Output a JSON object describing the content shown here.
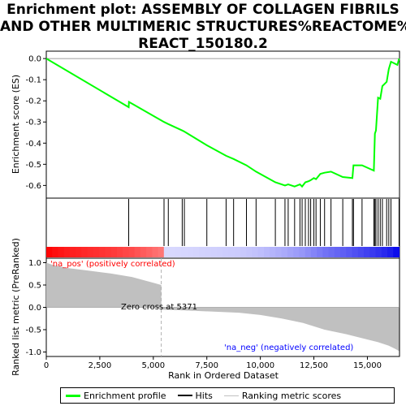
{
  "title_lines": [
    "Enrichment plot: ASSEMBLY OF COLLAGEN FIBRILS",
    "AND OTHER MULTIMERIC STRUCTURES%REACTOME%",
    "REACT_150180.2"
  ],
  "legend": {
    "items": [
      {
        "label": "Enrichment profile",
        "color": "#00ff00"
      },
      {
        "label": "Hits",
        "color": "#000000"
      },
      {
        "label": "Ranking metric scores",
        "color": "#c0c0c0"
      }
    ]
  },
  "colors": {
    "enrichment": "#00ff00",
    "ranking": "#c0c0c0",
    "hits": "#000000",
    "zero_cross": "#b0b0b0",
    "pos_label": "#ff0000",
    "neg_label": "#0000ff"
  },
  "chart_data": [
    {
      "type": "line",
      "ylabel": "Enrichment score (ES)",
      "xlim": [
        0,
        16500
      ],
      "ylim": [
        -0.66,
        0.035
      ],
      "yticks": [
        0.0,
        -0.1,
        -0.2,
        -0.3,
        -0.4,
        -0.5,
        -0.6
      ],
      "ytick_labels": [
        "0.0",
        "-0.1",
        "-0.2",
        "-0.3",
        "-0.4",
        "-0.5",
        "-0.6"
      ],
      "series": [
        {
          "x": [
            0,
            3850,
            3860,
            5500,
            5700,
            6350,
            6450,
            7500,
            8400,
            8750,
            9350,
            9800,
            10700,
            11150,
            11300,
            11600,
            11850,
            11950,
            12100,
            12250,
            12350,
            12500,
            12600,
            12800,
            13000,
            13300,
            13850,
            14300,
            14350,
            14750,
            15300,
            15350,
            15400,
            15500,
            15600,
            15700,
            15900,
            16000,
            16100,
            16400,
            16480
          ],
          "y": [
            0.0,
            -0.23,
            -0.205,
            -0.3,
            -0.31,
            -0.34,
            -0.345,
            -0.41,
            -0.46,
            -0.475,
            -0.505,
            -0.535,
            -0.585,
            -0.6,
            -0.595,
            -0.605,
            -0.595,
            -0.605,
            -0.585,
            -0.58,
            -0.575,
            -0.565,
            -0.57,
            -0.545,
            -0.54,
            -0.535,
            -0.56,
            -0.565,
            -0.505,
            -0.505,
            -0.53,
            -0.355,
            -0.34,
            -0.185,
            -0.19,
            -0.13,
            -0.11,
            -0.05,
            -0.015,
            -0.03,
            0.0
          ]
        }
      ]
    },
    {
      "type": "hits",
      "hit_positions": [
        3850,
        5500,
        5700,
        6350,
        6450,
        7500,
        8400,
        8750,
        9350,
        9800,
        10700,
        11150,
        11300,
        11600,
        11850,
        11950,
        12100,
        12250,
        12350,
        12500,
        12600,
        12800,
        13000,
        13300,
        13850,
        14300,
        14350,
        14750,
        15300,
        15350,
        15400,
        15500,
        15600,
        15700,
        15900,
        16000,
        16100,
        16480
      ]
    },
    {
      "type": "area",
      "xlabel": "Rank in Ordered Dataset",
      "ylabel": "Ranked list metric (PreRanked)",
      "xlim": [
        0,
        16500
      ],
      "ylim": [
        -1.1,
        1.1
      ],
      "yticks": [
        1.0,
        0.5,
        0.0,
        -0.5,
        -1.0
      ],
      "ytick_labels": [
        "1.0",
        "0.5",
        "0.0",
        "-0.5",
        "-1.0"
      ],
      "xticks": [
        0,
        2500,
        5000,
        7500,
        10000,
        12500,
        15000
      ],
      "xtick_labels": [
        "0",
        "2,500",
        "5,000",
        "7,500",
        "10,000",
        "12,500",
        "15,000"
      ],
      "x": [
        0,
        300,
        1000,
        2000,
        3000,
        4000,
        5000,
        5371,
        5380,
        7000,
        9000,
        10000,
        11000,
        12000,
        13000,
        14000,
        15000,
        15500,
        16000,
        16300,
        16480
      ],
      "values": [
        1.0,
        0.95,
        0.88,
        0.82,
        0.76,
        0.68,
        0.55,
        0.5,
        -0.05,
        -0.08,
        -0.12,
        -0.17,
        -0.25,
        -0.35,
        -0.5,
        -0.6,
        -0.72,
        -0.78,
        -0.86,
        -0.93,
        -0.98
      ],
      "zero_cross_label": "Zero cross at 5371",
      "zero_cross": 5371,
      "pos_label": "'na_pos' (positively correlated)",
      "neg_label": "'na_neg' (negatively correlated)"
    }
  ]
}
